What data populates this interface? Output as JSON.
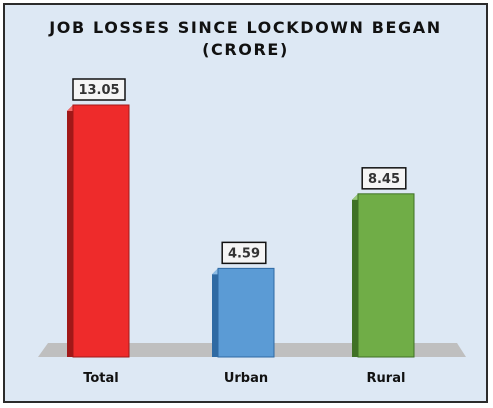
{
  "chart_data": {
    "type": "bar",
    "title": "JOB LOSSES SINCE LOCKDOWN BEGAN",
    "subtitle": "(CRORE)",
    "categories": [
      "Total",
      "Urban",
      "Rural"
    ],
    "values": [
      13.05,
      4.59,
      8.45
    ],
    "value_labels": [
      "13.05",
      "4.59",
      "8.45"
    ],
    "colors": [
      "#ee2b2b",
      "#5b9bd5",
      "#70ad47"
    ],
    "side_colors": [
      "#a11818",
      "#2f6aa3",
      "#3f7125"
    ],
    "top_colors": [
      "#f56a6a",
      "#8ebde6",
      "#99c97a"
    ],
    "floor_color": "#bfbfbf",
    "xlabel": "",
    "ylabel": "",
    "grid": false,
    "legend": "none"
  }
}
